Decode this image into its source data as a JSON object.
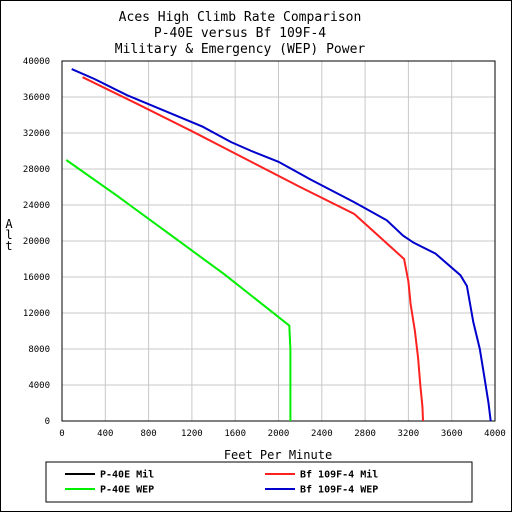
{
  "chart_data": {
    "type": "line",
    "title": [
      "Aces High Climb Rate Comparison",
      "P-40E versus Bf 109F-4",
      "Military & Emergency (WEP) Power"
    ],
    "xlabel": "Feet Per Minute",
    "ylabel": "Alt",
    "xlim": [
      0,
      4000
    ],
    "ylim": [
      0,
      40000
    ],
    "xticks": [
      0,
      400,
      800,
      1200,
      1600,
      2000,
      2400,
      2800,
      3200,
      3600,
      4000
    ],
    "yticks": [
      0,
      4000,
      8000,
      12000,
      16000,
      20000,
      24000,
      28000,
      32000,
      36000,
      40000
    ],
    "grid": true,
    "legend_position": "bottom",
    "series": [
      {
        "name": "P-40E Mil",
        "color": "#000000",
        "points": []
      },
      {
        "name": "Bf 109F-4 Mil",
        "color": "#ff2020",
        "points": [
          [
            190,
            38200
          ],
          [
            700,
            35200
          ],
          [
            1200,
            32200
          ],
          [
            1700,
            29100
          ],
          [
            2200,
            26000
          ],
          [
            2700,
            23000
          ],
          [
            3160,
            18000
          ],
          [
            3200,
            15500
          ],
          [
            3220,
            13000
          ],
          [
            3260,
            10000
          ],
          [
            3290,
            7000
          ],
          [
            3310,
            4000
          ],
          [
            3330,
            1500
          ],
          [
            3335,
            0
          ]
        ]
      },
      {
        "name": "P-40E WEP",
        "color": "#00ee00",
        "points": [
          [
            40,
            29000
          ],
          [
            500,
            25100
          ],
          [
            1000,
            20700
          ],
          [
            1500,
            16300
          ],
          [
            2100,
            10600
          ],
          [
            2110,
            8000
          ],
          [
            2110,
            4000
          ],
          [
            2110,
            0
          ]
        ]
      },
      {
        "name": "Bf 109F-4 WEP",
        "color": "#0000cc",
        "points": [
          [
            90,
            39100
          ],
          [
            300,
            38000
          ],
          [
            600,
            36200
          ],
          [
            1000,
            34200
          ],
          [
            1300,
            32700
          ],
          [
            1560,
            31000
          ],
          [
            1750,
            30000
          ],
          [
            2000,
            28800
          ],
          [
            2300,
            26800
          ],
          [
            2700,
            24300
          ],
          [
            3000,
            22300
          ],
          [
            3150,
            20600
          ],
          [
            3250,
            19800
          ],
          [
            3450,
            18600
          ],
          [
            3680,
            16200
          ],
          [
            3740,
            15000
          ],
          [
            3770,
            13000
          ],
          [
            3800,
            11000
          ],
          [
            3860,
            8000
          ],
          [
            3900,
            5000
          ],
          [
            3940,
            2000
          ],
          [
            3960,
            0
          ]
        ]
      }
    ]
  }
}
